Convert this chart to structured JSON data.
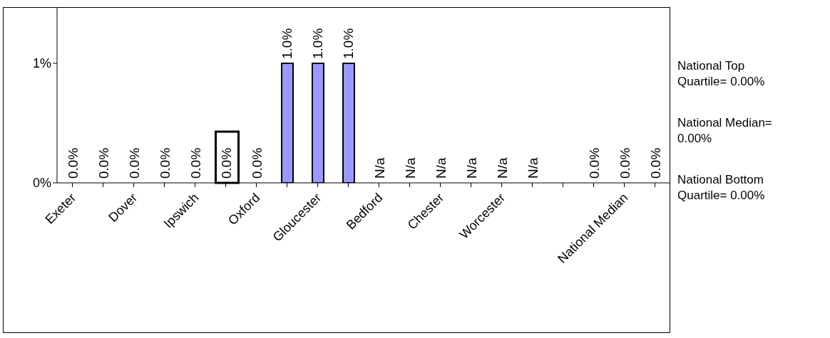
{
  "chart_data": {
    "type": "bar",
    "categories": [
      "Exeter",
      null,
      "Dover",
      null,
      "Ipswich",
      null,
      "Oxford",
      null,
      "Gloucester",
      null,
      "Bedford",
      null,
      "Chester",
      null,
      "Worcester",
      null,
      null,
      null,
      "National Median",
      null
    ],
    "values": [
      0,
      0,
      0,
      0,
      0,
      0,
      0,
      1,
      1,
      1,
      null,
      null,
      null,
      null,
      null,
      null,
      null,
      0,
      0,
      0
    ],
    "value_labels": [
      "0.0%",
      "0.0%",
      "0.0%",
      "0.0%",
      "0.0%",
      "0.0%",
      "0.0%",
      "1.0%",
      "1.0%",
      "1.0%",
      "N/a",
      "N/a",
      "N/a",
      "N/a",
      "N/a",
      "N/a",
      null,
      "0.0%",
      "0.0%",
      "0.0%"
    ],
    "color": "#9999ff",
    "ylim": [
      0,
      1.47
    ],
    "yticks": [
      {
        "value": 0,
        "label": "0%"
      },
      {
        "value": 1,
        "label": "1%"
      }
    ],
    "annotations": [
      "National Top Quartile= 0.00%",
      "National Median= 0.00%",
      "National Bottom Quartile= 0.00%"
    ]
  }
}
